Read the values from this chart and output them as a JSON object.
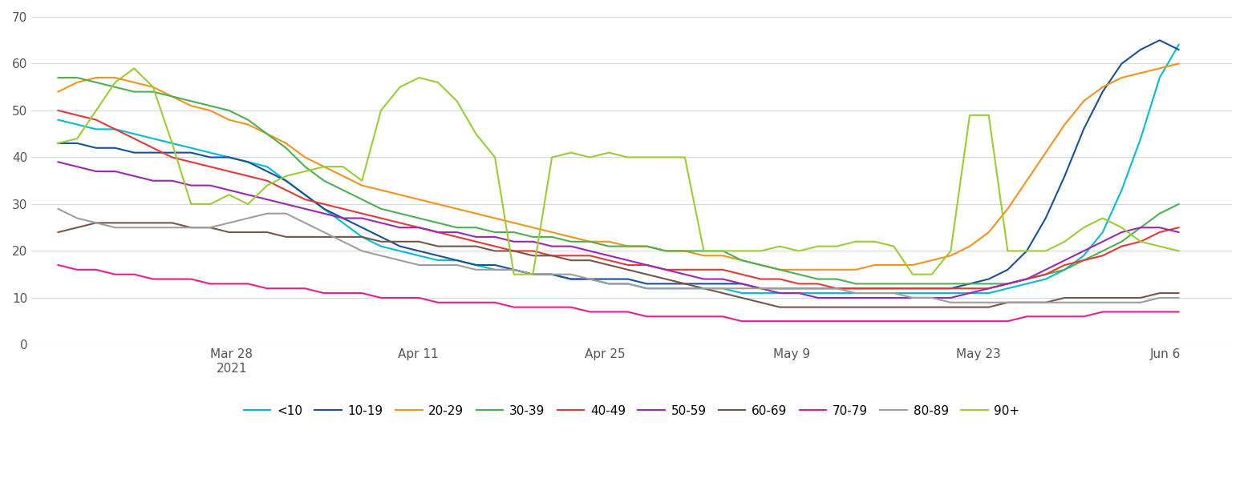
{
  "title": "",
  "ylabel": "",
  "xlabel": "",
  "ylim": [
    0,
    70
  ],
  "yticks": [
    0,
    10,
    20,
    30,
    40,
    50,
    60,
    70
  ],
  "background_color": "#ffffff",
  "grid_color": "#cdd8ea",
  "series": {
    "<10": {
      "color": "#00bcd4",
      "values": [
        48,
        47,
        46,
        46,
        45,
        44,
        43,
        42,
        41,
        40,
        39,
        38,
        35,
        32,
        29,
        26,
        23,
        21,
        20,
        19,
        18,
        18,
        17,
        16,
        16,
        15,
        15,
        14,
        14,
        13,
        13,
        12,
        12,
        12,
        12,
        12,
        11,
        11,
        11,
        11,
        11,
        11,
        11,
        11,
        11,
        11,
        11,
        11,
        11,
        11,
        12,
        13,
        14,
        16,
        19,
        24,
        33,
        44,
        57,
        64
      ]
    },
    "10-19": {
      "color": "#1a4f99",
      "values": [
        43,
        43,
        42,
        42,
        41,
        41,
        41,
        41,
        40,
        40,
        39,
        37,
        35,
        32,
        29,
        27,
        25,
        23,
        21,
        20,
        19,
        18,
        17,
        17,
        16,
        15,
        15,
        14,
        14,
        14,
        14,
        13,
        13,
        13,
        13,
        13,
        13,
        12,
        12,
        12,
        12,
        12,
        12,
        12,
        12,
        12,
        12,
        12,
        13,
        14,
        16,
        20,
        27,
        36,
        46,
        54,
        60,
        63,
        65,
        63
      ]
    },
    "20-29": {
      "color": "#f4921e",
      "values": [
        54,
        56,
        57,
        57,
        56,
        55,
        53,
        51,
        50,
        48,
        47,
        45,
        43,
        40,
        38,
        36,
        34,
        33,
        32,
        31,
        30,
        29,
        28,
        27,
        26,
        25,
        24,
        23,
        22,
        22,
        21,
        21,
        20,
        20,
        19,
        19,
        18,
        17,
        16,
        16,
        16,
        16,
        16,
        17,
        17,
        17,
        18,
        19,
        21,
        24,
        29,
        35,
        41,
        47,
        52,
        55,
        57,
        58,
        59,
        60
      ]
    },
    "30-39": {
      "color": "#4caf50",
      "values": [
        57,
        57,
        56,
        55,
        54,
        54,
        53,
        52,
        51,
        50,
        48,
        45,
        42,
        38,
        35,
        33,
        31,
        29,
        28,
        27,
        26,
        25,
        25,
        24,
        24,
        23,
        23,
        22,
        22,
        21,
        21,
        21,
        20,
        20,
        20,
        20,
        18,
        17,
        16,
        15,
        14,
        14,
        13,
        13,
        13,
        13,
        13,
        13,
        13,
        13,
        13,
        14,
        15,
        16,
        18,
        20,
        22,
        25,
        28,
        30
      ]
    },
    "40-49": {
      "color": "#e53935",
      "values": [
        50,
        49,
        48,
        46,
        44,
        42,
        40,
        39,
        38,
        37,
        36,
        35,
        33,
        31,
        30,
        29,
        28,
        27,
        26,
        25,
        24,
        23,
        22,
        21,
        20,
        20,
        19,
        19,
        19,
        18,
        17,
        17,
        16,
        16,
        16,
        16,
        15,
        14,
        14,
        13,
        13,
        12,
        12,
        12,
        12,
        12,
        12,
        12,
        12,
        12,
        13,
        14,
        15,
        17,
        18,
        19,
        21,
        22,
        24,
        25
      ]
    },
    "50-59": {
      "color": "#9c27b0",
      "values": [
        39,
        38,
        37,
        37,
        36,
        35,
        35,
        34,
        34,
        33,
        32,
        31,
        30,
        29,
        28,
        27,
        27,
        26,
        25,
        25,
        24,
        24,
        23,
        23,
        22,
        22,
        21,
        21,
        20,
        19,
        18,
        17,
        16,
        15,
        14,
        14,
        13,
        12,
        11,
        11,
        10,
        10,
        10,
        10,
        10,
        10,
        10,
        10,
        11,
        12,
        13,
        14,
        16,
        18,
        20,
        22,
        24,
        25,
        25,
        24
      ]
    },
    "60-69": {
      "color": "#795548",
      "values": [
        24,
        25,
        26,
        26,
        26,
        26,
        26,
        25,
        25,
        24,
        24,
        24,
        23,
        23,
        23,
        23,
        23,
        22,
        22,
        22,
        21,
        21,
        21,
        20,
        20,
        19,
        19,
        18,
        18,
        17,
        16,
        15,
        14,
        13,
        12,
        11,
        10,
        9,
        8,
        8,
        8,
        8,
        8,
        8,
        8,
        8,
        8,
        8,
        8,
        8,
        9,
        9,
        9,
        10,
        10,
        10,
        10,
        10,
        11,
        11
      ]
    },
    "70-79": {
      "color": "#e91e8c",
      "values": [
        17,
        16,
        16,
        15,
        15,
        14,
        14,
        14,
        13,
        13,
        13,
        12,
        12,
        12,
        11,
        11,
        11,
        10,
        10,
        10,
        9,
        9,
        9,
        9,
        8,
        8,
        8,
        8,
        7,
        7,
        7,
        6,
        6,
        6,
        6,
        6,
        5,
        5,
        5,
        5,
        5,
        5,
        5,
        5,
        5,
        5,
        5,
        5,
        5,
        5,
        5,
        6,
        6,
        6,
        6,
        7,
        7,
        7,
        7,
        7
      ]
    },
    "80-89": {
      "color": "#9e9e9e",
      "values": [
        29,
        27,
        26,
        25,
        25,
        25,
        25,
        25,
        25,
        26,
        27,
        28,
        28,
        26,
        24,
        22,
        20,
        19,
        18,
        17,
        17,
        17,
        16,
        16,
        16,
        15,
        15,
        15,
        14,
        13,
        13,
        12,
        12,
        12,
        12,
        12,
        12,
        12,
        12,
        12,
        12,
        12,
        11,
        11,
        11,
        10,
        10,
        9,
        9,
        9,
        9,
        9,
        9,
        9,
        9,
        9,
        9,
        9,
        10,
        10
      ]
    },
    "90+": {
      "color": "#9acd32",
      "values": [
        43,
        44,
        50,
        56,
        59,
        55,
        43,
        30,
        30,
        32,
        30,
        34,
        36,
        37,
        38,
        38,
        35,
        50,
        55,
        57,
        56,
        52,
        45,
        40,
        15,
        15,
        40,
        41,
        40,
        41,
        40,
        40,
        40,
        40,
        20,
        20,
        20,
        20,
        21,
        20,
        21,
        21,
        22,
        22,
        21,
        15,
        15,
        20,
        49,
        49,
        20,
        20,
        20,
        22,
        25,
        27,
        25,
        22,
        21,
        20
      ]
    }
  },
  "n_points": 60,
  "x_tick_labels": [
    "Mar 28\n2021",
    "Apr 11",
    "Apr 25",
    "May 9",
    "May 23",
    "Jun 6"
  ],
  "x_tick_positions": [
    7,
    21,
    35,
    49,
    63,
    77
  ],
  "xlim": [
    -1,
    85
  ]
}
